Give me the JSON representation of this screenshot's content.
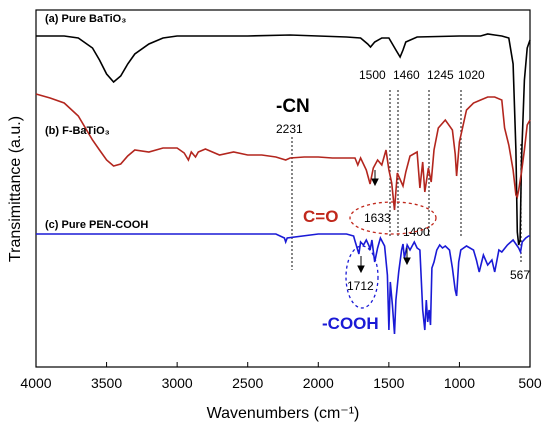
{
  "chart_data": {
    "type": "line",
    "xlabel": "Wavenumbers (cm⁻¹)",
    "ylabel": "Transimittance (a.u.)",
    "xlim": [
      4000,
      500
    ],
    "x_ticks": [
      "4000",
      "3500",
      "3000",
      "2500",
      "2000",
      "1500",
      "1000",
      "500"
    ],
    "series": [
      {
        "name": "(a) Pure BaTiO₃",
        "color": "#000000",
        "points": [
          [
            4000,
            36
          ],
          [
            3800,
            36
          ],
          [
            3700,
            38
          ],
          [
            3600,
            48
          ],
          [
            3550,
            60
          ],
          [
            3500,
            74
          ],
          [
            3450,
            82
          ],
          [
            3400,
            76
          ],
          [
            3350,
            64
          ],
          [
            3300,
            54
          ],
          [
            3200,
            44
          ],
          [
            3100,
            38
          ],
          [
            3000,
            36
          ],
          [
            2500,
            36
          ],
          [
            2200,
            35
          ],
          [
            2000,
            36
          ],
          [
            1800,
            37
          ],
          [
            1700,
            38
          ],
          [
            1650,
            44
          ],
          [
            1630,
            47
          ],
          [
            1600,
            42
          ],
          [
            1550,
            38
          ],
          [
            1500,
            38
          ],
          [
            1450,
            50
          ],
          [
            1420,
            57
          ],
          [
            1400,
            50
          ],
          [
            1380,
            42
          ],
          [
            1300,
            37
          ],
          [
            1000,
            36
          ],
          [
            850,
            36
          ],
          [
            800,
            34
          ],
          [
            750,
            35
          ],
          [
            700,
            36
          ],
          [
            650,
            38
          ],
          [
            620,
            64
          ],
          [
            600,
            150
          ],
          [
            590,
            232
          ],
          [
            580,
            245
          ],
          [
            570,
            240
          ],
          [
            560,
            160
          ],
          [
            540,
            80
          ],
          [
            520,
            48
          ],
          [
            500,
            40
          ]
        ]
      },
      {
        "name": "(b) F-BaTiO₃",
        "color": "#b3261e",
        "points": [
          [
            4000,
            94
          ],
          [
            3900,
            98
          ],
          [
            3800,
            103
          ],
          [
            3700,
            116
          ],
          [
            3600,
            140
          ],
          [
            3550,
            150
          ],
          [
            3500,
            160
          ],
          [
            3450,
            166
          ],
          [
            3400,
            164
          ],
          [
            3350,
            156
          ],
          [
            3300,
            150
          ],
          [
            3200,
            152
          ],
          [
            3100,
            148
          ],
          [
            3000,
            148
          ],
          [
            2950,
            153
          ],
          [
            2920,
            160
          ],
          [
            2900,
            152
          ],
          [
            2870,
            157
          ],
          [
            2850,
            152
          ],
          [
            2800,
            149
          ],
          [
            2700,
            155
          ],
          [
            2600,
            152
          ],
          [
            2500,
            155
          ],
          [
            2400,
            155
          ],
          [
            2300,
            157
          ],
          [
            2231,
            160
          ],
          [
            2200,
            158
          ],
          [
            2100,
            157
          ],
          [
            2000,
            157
          ],
          [
            1900,
            158
          ],
          [
            1800,
            158
          ],
          [
            1740,
            158
          ],
          [
            1720,
            165
          ],
          [
            1700,
            158
          ],
          [
            1660,
            170
          ],
          [
            1633,
            184
          ],
          [
            1610,
            168
          ],
          [
            1580,
            160
          ],
          [
            1550,
            165
          ],
          [
            1520,
            150
          ],
          [
            1500,
            170
          ],
          [
            1480,
            183
          ],
          [
            1460,
            210
          ],
          [
            1440,
            173
          ],
          [
            1400,
            186
          ],
          [
            1380,
            172
          ],
          [
            1350,
            156
          ],
          [
            1300,
            152
          ],
          [
            1280,
            188
          ],
          [
            1260,
            162
          ],
          [
            1245,
            192
          ],
          [
            1220,
            168
          ],
          [
            1200,
            182
          ],
          [
            1180,
            150
          ],
          [
            1150,
            128
          ],
          [
            1100,
            120
          ],
          [
            1050,
            130
          ],
          [
            1030,
            154
          ],
          [
            1020,
            176
          ],
          [
            1000,
            142
          ],
          [
            950,
            110
          ],
          [
            900,
            103
          ],
          [
            850,
            100
          ],
          [
            800,
            97
          ],
          [
            750,
            97
          ],
          [
            700,
            100
          ],
          [
            680,
            128
          ],
          [
            650,
            145
          ],
          [
            620,
            170
          ],
          [
            600,
            195
          ],
          [
            590,
            197
          ],
          [
            580,
            190
          ],
          [
            560,
            172
          ],
          [
            540,
            150
          ],
          [
            520,
            125
          ],
          [
            500,
            120
          ]
        ]
      },
      {
        "name": "(c) Pure PEN-COOH",
        "color": "#1a1ad6",
        "points": [
          [
            4000,
            234
          ],
          [
            3600,
            234
          ],
          [
            3000,
            234
          ],
          [
            2600,
            234
          ],
          [
            2300,
            234
          ],
          [
            2240,
            238
          ],
          [
            2231,
            242
          ],
          [
            2220,
            238
          ],
          [
            2000,
            234
          ],
          [
            1800,
            234
          ],
          [
            1750,
            236
          ],
          [
            1740,
            241
          ],
          [
            1712,
            254
          ],
          [
            1700,
            242
          ],
          [
            1680,
            245
          ],
          [
            1660,
            240
          ],
          [
            1640,
            246
          ],
          [
            1633,
            250
          ],
          [
            1620,
            240
          ],
          [
            1600,
            262
          ],
          [
            1580,
            248
          ],
          [
            1560,
            238
          ],
          [
            1530,
            246
          ],
          [
            1510,
            275
          ],
          [
            1500,
            330
          ],
          [
            1490,
            282
          ],
          [
            1475,
            305
          ],
          [
            1460,
            334
          ],
          [
            1450,
            300
          ],
          [
            1430,
            272
          ],
          [
            1410,
            250
          ],
          [
            1400,
            244
          ],
          [
            1390,
            258
          ],
          [
            1370,
            245
          ],
          [
            1350,
            250
          ],
          [
            1320,
            242
          ],
          [
            1300,
            248
          ],
          [
            1280,
            250
          ],
          [
            1260,
            310
          ],
          [
            1245,
            330
          ],
          [
            1235,
            300
          ],
          [
            1225,
            322
          ],
          [
            1215,
            310
          ],
          [
            1205,
            325
          ],
          [
            1195,
            268
          ],
          [
            1180,
            262
          ],
          [
            1160,
            250
          ],
          [
            1140,
            245
          ],
          [
            1120,
            248
          ],
          [
            1100,
            246
          ],
          [
            1070,
            250
          ],
          [
            1050,
            268
          ],
          [
            1030,
            290
          ],
          [
            1020,
            296
          ],
          [
            1005,
            262
          ],
          [
            990,
            250
          ],
          [
            950,
            246
          ],
          [
            900,
            250
          ],
          [
            880,
            260
          ],
          [
            860,
            272
          ],
          [
            830,
            255
          ],
          [
            800,
            265
          ],
          [
            770,
            260
          ],
          [
            750,
            272
          ],
          [
            720,
            250
          ],
          [
            700,
            252
          ],
          [
            660,
            245
          ],
          [
            620,
            240
          ],
          [
            580,
            248
          ],
          [
            567,
            252
          ],
          [
            555,
            242
          ],
          [
            530,
            238
          ],
          [
            510,
            236
          ],
          [
            500,
            236
          ]
        ]
      }
    ],
    "annotations": {
      "cn": "-CN",
      "w2231": "2231",
      "w1500": "1500",
      "w1460": "1460",
      "w1245": "1245",
      "w1020": "1020",
      "w1633": "1633",
      "w1400": "1400",
      "w1712": "1712",
      "w567": "567",
      "co": "C=O",
      "cooh": "-COOH"
    }
  }
}
